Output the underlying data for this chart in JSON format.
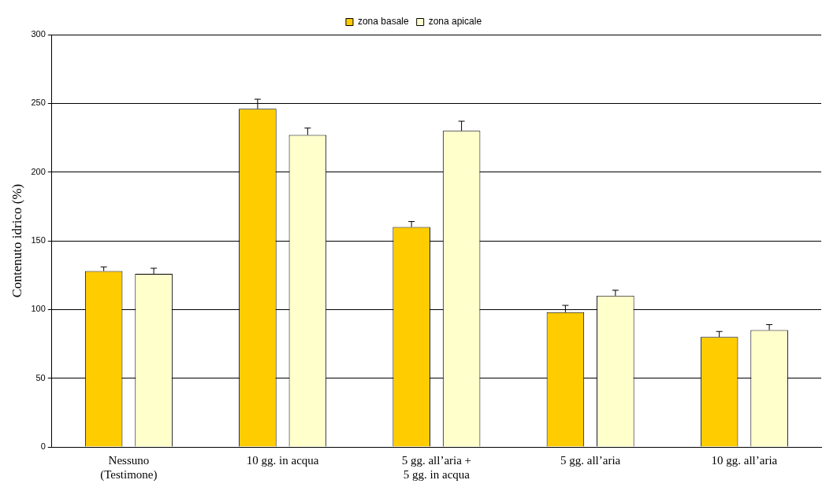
{
  "chart_data": {
    "type": "bar",
    "ylabel": "Contenuto idrico (%)",
    "categories": [
      "Nessuno\n(Testimone)",
      "10 gg. in acqua",
      "5 gg. all’aria +\n5 gg. in acqua",
      "5 gg. all’aria",
      "10 gg. all’aria"
    ],
    "series": [
      {
        "name": "zona basale",
        "color": "#ffcc00",
        "values": [
          128,
          246,
          160,
          98,
          80
        ],
        "errors": [
          [
            128,
            131
          ],
          [
            246,
            253
          ],
          [
            160,
            164
          ],
          [
            98,
            103
          ],
          [
            80,
            84
          ]
        ]
      },
      {
        "name": "zona apicale",
        "color": "#ffffcc",
        "values": [
          126,
          227,
          230,
          110,
          85
        ],
        "errors": [
          [
            126,
            130
          ],
          [
            227,
            232
          ],
          [
            230,
            237
          ],
          [
            110,
            114
          ],
          [
            85,
            89
          ]
        ]
      }
    ],
    "ylim": [
      0,
      300
    ],
    "yticks": [
      0,
      50,
      100,
      150,
      200,
      250,
      300
    ],
    "grid": "y",
    "legend": "top"
  }
}
